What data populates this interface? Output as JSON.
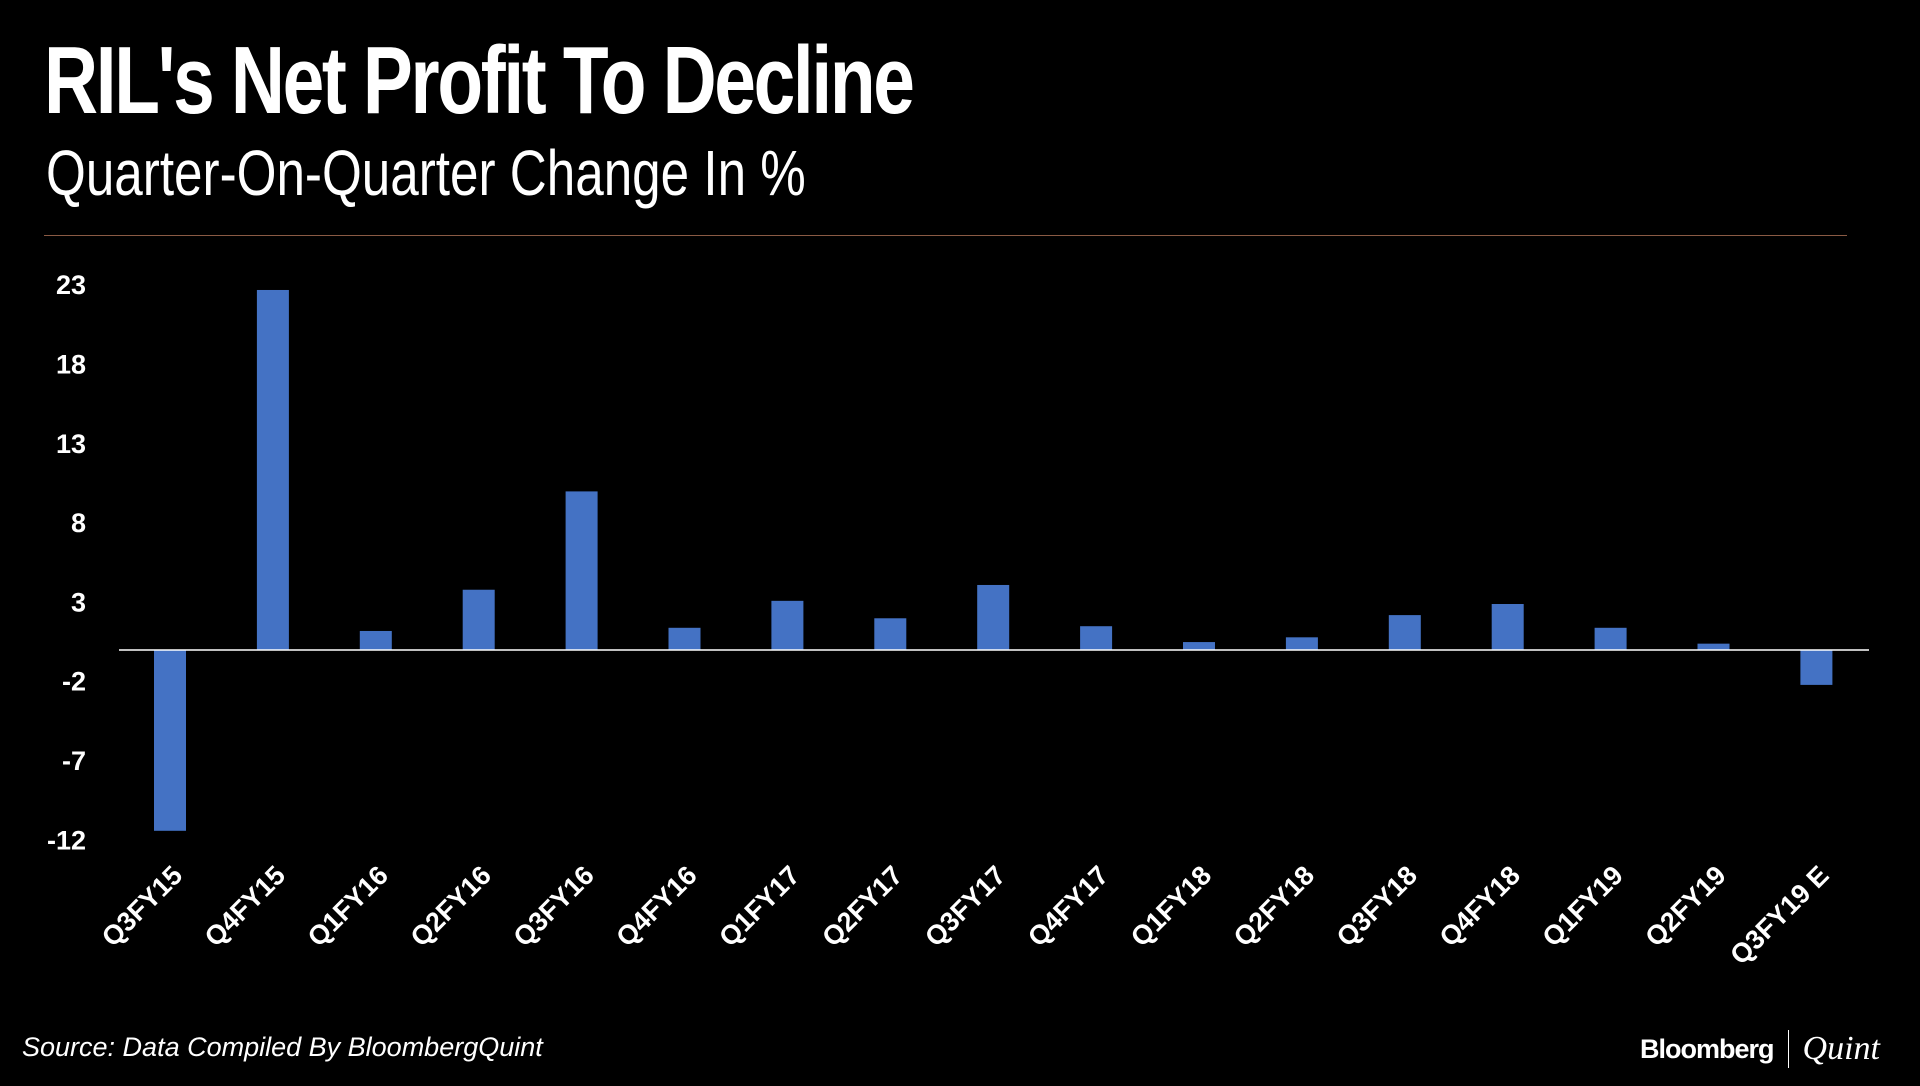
{
  "title": "RIL's Net Profit To Decline",
  "subtitle": "Quarter-On-Quarter Change In %",
  "source": "Source: Data Compiled By BloombergQuint",
  "logo": {
    "left": "Bloomberg",
    "right": "Quint"
  },
  "chart_data": {
    "type": "bar",
    "title": "RIL's Net Profit To Decline",
    "subtitle": "Quarter-On-Quarter Change In %",
    "xlabel": "",
    "ylabel": "",
    "categories": [
      "Q3FY15",
      "Q4FY15",
      "Q1FY16",
      "Q2FY16",
      "Q3FY16",
      "Q4FY16",
      "Q1FY17",
      "Q2FY17",
      "Q3FY17",
      "Q4FY17",
      "Q1FY18",
      "Q2FY18",
      "Q3FY18",
      "Q4FY18",
      "Q1FY19",
      "Q2FY19",
      "Q3FY19 E"
    ],
    "values": [
      -11.4,
      22.7,
      1.2,
      3.8,
      10.0,
      1.4,
      3.1,
      2.0,
      4.1,
      1.5,
      0.5,
      0.8,
      2.2,
      2.9,
      1.4,
      0.4,
      -2.2
    ],
    "yticks": [
      23,
      18,
      13,
      8,
      3,
      -2,
      -7,
      -12
    ],
    "ylim": [
      -12,
      23
    ],
    "grid": false,
    "bar_color": "#4472c4"
  }
}
